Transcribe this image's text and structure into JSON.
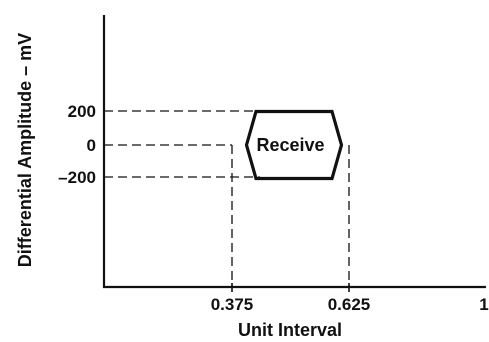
{
  "diagram": {
    "y_axis_title": "Differential Amplitude – mV",
    "x_axis_title": "Unit Interval",
    "y_ticks": [
      {
        "value": 200,
        "label": "200"
      },
      {
        "value": 0,
        "label": "0"
      },
      {
        "value": -200,
        "label": "–200"
      }
    ],
    "x_ticks": [
      {
        "value": 0.375,
        "label": "0.375"
      },
      {
        "value": 0.625,
        "label": "0.625"
      },
      {
        "value": 1,
        "label": "1"
      }
    ],
    "region": {
      "label": "Receive",
      "vertices": [
        {
          "x": 0.375,
          "y": 0
        },
        {
          "x": 0.4,
          "y": 200
        },
        {
          "x": 0.6,
          "y": 200
        },
        {
          "x": 0.625,
          "y": 0
        },
        {
          "x": 0.6,
          "y": -200
        },
        {
          "x": 0.4,
          "y": -200
        }
      ]
    },
    "colors": {
      "ink": "#111111",
      "background": "#ffffff"
    }
  }
}
